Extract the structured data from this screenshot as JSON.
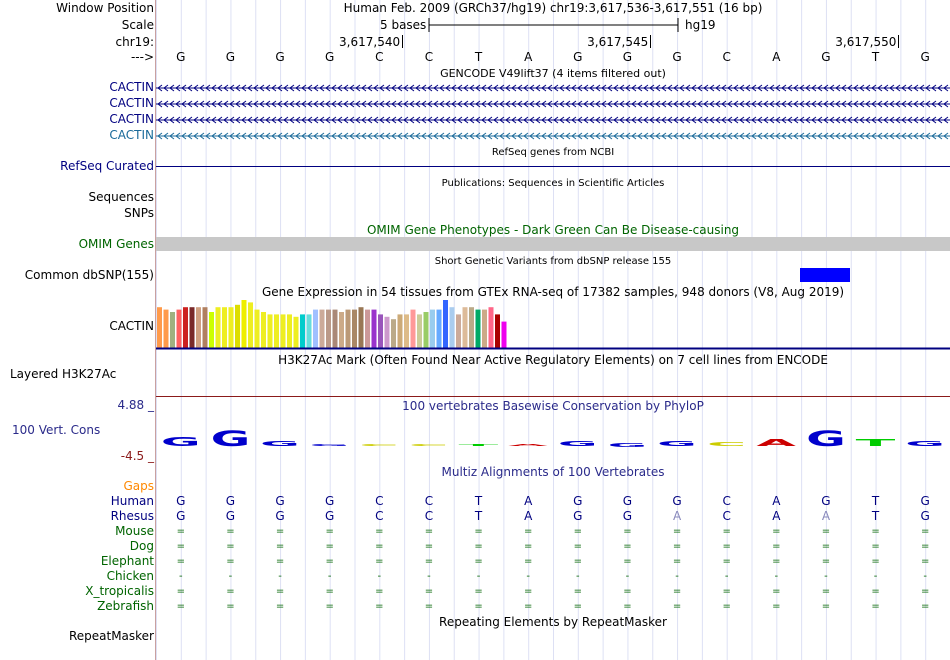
{
  "header": {
    "position_title": "Human Feb. 2009 (GRCh37/hg19)   chr19:3,617,536-3,617,551 (16 bp)",
    "scale_text": "5 bases",
    "assembly": "hg19",
    "ticks": [
      {
        "label": "3,617,540",
        "base_index": 4
      },
      {
        "label": "3,617,545",
        "base_index": 9
      },
      {
        "label": "3,617,550",
        "base_index": 14
      }
    ]
  },
  "labels": {
    "window_position": "Window Position",
    "scale": "Scale",
    "chrom": "chr19:",
    "strand": "--->",
    "cactin1": "CACTIN",
    "cactin2": "CACTIN",
    "cactin3": "CACTIN",
    "cactin4": "CACTIN",
    "refseq": "RefSeq Curated",
    "sequences": "Sequences",
    "snps": "SNPs",
    "omim": "OMIM Genes",
    "dbsnp": "Common dbSNP(155)",
    "gtex": "CACTIN",
    "h3k27ac": "Layered H3K27Ac",
    "cons_max": "4.88 _",
    "cons": "100 Vert. Cons",
    "cons_min": "-4.5 _",
    "gaps": "Gaps",
    "repeatmasker": "RepeatMasker"
  },
  "centers": {
    "gencode": "GENCODE V49lift37 (4 items filtered out)",
    "refseq": "RefSeq genes from NCBI",
    "publications": "Publications: Sequences in Scientific Articles",
    "omim": "OMIM Gene Phenotypes - Dark Green Can Be Disease-causing",
    "dbsnp": "Short Genetic Variants from dbSNP release 155",
    "gtex": "Gene Expression in 54 tissues from GTEx RNA-seq of 17382 samples, 948 donors (V8, Aug 2019)",
    "h3k27ac": "H3K27Ac Mark (Often Found Near Active Regulatory Elements) on 7 cell lines from ENCODE",
    "phylop": "100 vertebrates Basewise Conservation by PhyloP",
    "multiz": "Multiz Alignments of 100 Vertebrates",
    "repeat": "Repeating Elements by RepeatMasker"
  },
  "bases": [
    "G",
    "G",
    "G",
    "G",
    "C",
    "C",
    "T",
    "A",
    "G",
    "G",
    "G",
    "C",
    "A",
    "G",
    "T",
    "G"
  ],
  "species": [
    {
      "name": "Human",
      "color": "#000080",
      "row": [
        "G",
        "G",
        "G",
        "G",
        "C",
        "C",
        "T",
        "A",
        "G",
        "G",
        "G",
        "C",
        "A",
        "G",
        "T",
        "G"
      ]
    },
    {
      "name": "Rhesus",
      "color": "#000080",
      "row": [
        "G",
        "G",
        "G",
        "G",
        "C",
        "C",
        "T",
        "A",
        "G",
        "G",
        "A",
        "C",
        "A",
        "A",
        "T",
        "G"
      ]
    },
    {
      "name": "Mouse",
      "color": "#006400",
      "row": [
        "=",
        "=",
        "=",
        "=",
        "=",
        "=",
        "=",
        "=",
        "=",
        "=",
        "=",
        "=",
        "=",
        "=",
        "=",
        "="
      ]
    },
    {
      "name": "Dog",
      "color": "#006400",
      "row": [
        "=",
        "=",
        "=",
        "=",
        "=",
        "=",
        "=",
        "=",
        "=",
        "=",
        "=",
        "=",
        "=",
        "=",
        "=",
        "="
      ]
    },
    {
      "name": "Elephant",
      "color": "#006400",
      "row": [
        "=",
        "=",
        "=",
        "=",
        "=",
        "=",
        "=",
        "=",
        "=",
        "=",
        "=",
        "=",
        "=",
        "=",
        "=",
        "="
      ]
    },
    {
      "name": "Chicken",
      "color": "#006400",
      "row": [
        "-",
        "-",
        "-",
        "-",
        "-",
        "-",
        "-",
        "-",
        "-",
        "-",
        "-",
        "-",
        "-",
        "-",
        "-",
        "-"
      ]
    },
    {
      "name": "X_tropicalis",
      "color": "#006400",
      "row": [
        "=",
        "=",
        "=",
        "=",
        "=",
        "=",
        "=",
        "=",
        "=",
        "=",
        "=",
        "=",
        "=",
        "=",
        "=",
        "="
      ]
    },
    {
      "name": "Zebrafish",
      "color": "#006400",
      "row": [
        "=",
        "=",
        "=",
        "=",
        "=",
        "=",
        "=",
        "=",
        "=",
        "=",
        "=",
        "=",
        "=",
        "=",
        "=",
        "="
      ]
    }
  ],
  "gtex_values": [
    0.85,
    0.8,
    0.75,
    0.8,
    0.85,
    0.85,
    0.85,
    0.85,
    0.75,
    0.85,
    0.85,
    0.85,
    0.9,
    1.0,
    0.95,
    0.8,
    0.75,
    0.7,
    0.7,
    0.7,
    0.7,
    0.65,
    0.7,
    0.7,
    0.8,
    0.8,
    0.8,
    0.8,
    0.75,
    0.8,
    0.8,
    0.85,
    0.8,
    0.8,
    0.7,
    0.65,
    0.6,
    0.7,
    0.7,
    0.8,
    0.7,
    0.75,
    0.8,
    0.8,
    1.0,
    0.85,
    0.7,
    0.85,
    0.85,
    0.8,
    0.8,
    0.85,
    0.7,
    0.55
  ],
  "gtex_colors": [
    "#ff9a4a",
    "#ff9a4a",
    "#a0b080",
    "#ff6060",
    "#cc2020",
    "#7a2a2a",
    "#d0a080",
    "#b08060",
    "#ccff00",
    "#eeee22",
    "#eeee22",
    "#eeee22",
    "#dddd00",
    "#eeee00",
    "#eeee22",
    "#eeee22",
    "#eeee22",
    "#eeee22",
    "#eeee22",
    "#eeee22",
    "#eeee22",
    "#eeee22",
    "#00cccc",
    "#66dddd",
    "#a0c0ff",
    "#ccaa99",
    "#bb9988",
    "#aa8877",
    "#ccaa88",
    "#bb9977",
    "#aa8866",
    "#997755",
    "#cc9999",
    "#9933cc",
    "#9955bb",
    "#cc99cc",
    "#bbaa88",
    "#ccaa77",
    "#ddbb88",
    "#ff9999",
    "#cccc99",
    "#99cc66",
    "#99ccee",
    "#66aaff",
    "#3366ff",
    "#aaccee",
    "#ccaa99",
    "#ddbb99",
    "#bbaa88",
    "#00aa66",
    "#ccaa88",
    "#ff6688",
    "#aa0000",
    "#ee00ee"
  ],
  "phylop_letters": [
    "G",
    "G",
    "G",
    "G",
    "C",
    "C",
    "T",
    "A",
    "G",
    "G",
    "G",
    "C",
    "A",
    "G",
    "T",
    "G"
  ],
  "phylop_values": [
    0.5,
    0.9,
    0.3,
    0.1,
    0.1,
    0.05,
    0.05,
    0.05,
    0.3,
    -0.2,
    0.3,
    0.2,
    0.4,
    0.9,
    0.4,
    0.3
  ],
  "phylop_colors": {
    "G": "#0000cc",
    "C": "#cccc00",
    "T": "#00cc00",
    "A": "#cc0000"
  },
  "colors": {
    "gene": "#000080",
    "label_blue": "#000080",
    "omim": "#006400",
    "gaps": "#ff8800",
    "dbsnp": "#0000ff",
    "omim_bar": "#c8c8c8"
  }
}
